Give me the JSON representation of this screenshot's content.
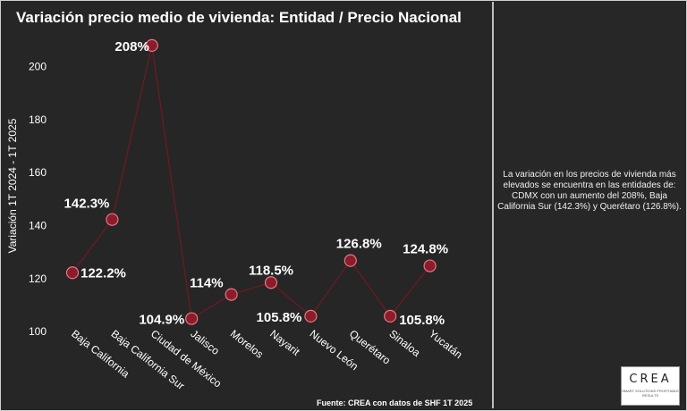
{
  "chart_data": {
    "type": "line",
    "title": "Variación precio medio de vivienda: Entidad / Precio Nacional",
    "xlabel": "",
    "ylabel": "Variación 1T 2024 - 1T 2025",
    "categories": [
      "Baja California",
      "Baja California Sur",
      "Ciudad de México",
      "Jalisco",
      "Morelos",
      "Nayarit",
      "Nuevo León",
      "Querétaro",
      "Sinaloa",
      "Yucatán"
    ],
    "values": [
      122.2,
      142.3,
      208,
      104.9,
      114,
      118.5,
      105.8,
      126.8,
      105.8,
      124.8
    ],
    "data_labels": [
      "122.2%",
      "142.3%",
      "208%",
      "104.9%",
      "114%",
      "118.5%",
      "105.8%",
      "126.8%",
      "105.8%",
      "124.8%"
    ],
    "yticks": [
      100,
      120,
      140,
      160,
      180,
      200
    ],
    "ylim": [
      97,
      211
    ],
    "grid": false,
    "line_color": "#6b1a22",
    "marker_color": "#8c1c2b",
    "marker_edge_color": "#e07a82"
  },
  "source": "Fuente: CREA con datos de SHF 1T 2025",
  "annotation": "La variación en los precios de vivienda más elevados se encuentra en las entidades de: CDMX con un aumento del 208%, Baja California Sur (142.3%) y Querétaro (126.8%).",
  "logo": {
    "name": "CREA",
    "tagline": "SMART SOLUTIONS PROFITABLE RESULTS"
  }
}
